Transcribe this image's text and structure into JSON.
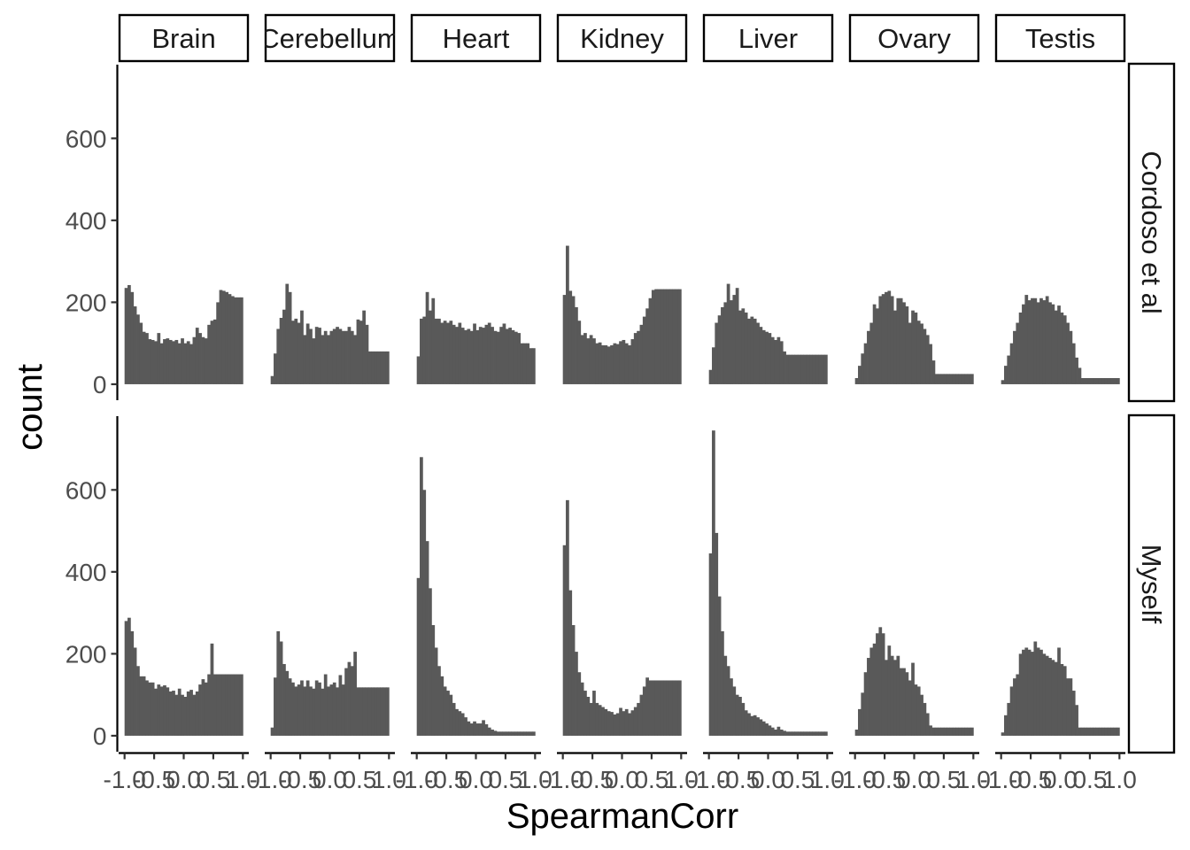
{
  "chart_data": {
    "type": "bar",
    "subtype": "faceted histogram",
    "xlabel": "SpearmanCorr",
    "ylabel": "count",
    "xlim": [
      -1.0,
      1.0
    ],
    "ylim": [
      0,
      780
    ],
    "x_ticks": [
      "-1.0",
      "-0.5",
      "0.0",
      "0.5",
      "1.0"
    ],
    "y_ticks": [
      "0",
      "200",
      "400",
      "600"
    ],
    "grid": false,
    "bin_edges": [
      -1.0,
      -0.95,
      -0.9,
      -0.85,
      -0.8,
      -0.75,
      -0.7,
      -0.65,
      -0.6,
      -0.55,
      -0.5,
      -0.45,
      -0.4,
      -0.35,
      -0.3,
      -0.25,
      -0.2,
      -0.15,
      -0.1,
      -0.05,
      0.0,
      0.05,
      0.1,
      0.15,
      0.2,
      0.25,
      0.3,
      0.35,
      0.4,
      0.45,
      0.5,
      0.55,
      0.6,
      0.65,
      0.7,
      0.75,
      0.8,
      0.85,
      0.9,
      0.95,
      1.0
    ],
    "columns": [
      "Brain",
      "Cerebellum",
      "Heart",
      "Kidney",
      "Liver",
      "Ovary",
      "Testis"
    ],
    "rows": [
      "Cordoso et al",
      "Myself"
    ],
    "panels": [
      {
        "row": "Cordoso et al",
        "column": "Brain",
        "counts": [
          235,
          242,
          225,
          190,
          170,
          150,
          128,
          125,
          110,
          108,
          105,
          125,
          100,
          110,
          112,
          108,
          105,
          108,
          100,
          112,
          100,
          105,
          98,
          115,
          138,
          125,
          115,
          112,
          145,
          155,
          158,
          200,
          230,
          228,
          225,
          220,
          215,
          212,
          212,
          212
        ]
      },
      {
        "row": "Cordoso et al",
        "column": "Cerebellum",
        "counts": [
          20,
          75,
          135,
          162,
          182,
          245,
          225,
          155,
          160,
          150,
          180,
          120,
          148,
          135,
          112,
          140,
          138,
          120,
          130,
          120,
          130,
          135,
          140,
          135,
          130,
          130,
          140,
          130,
          120,
          158,
          155,
          180,
          145,
          80,
          80,
          80,
          80,
          80,
          80,
          80
        ]
      },
      {
        "row": "Cordoso et al",
        "column": "Heart",
        "counts": [
          68,
          160,
          165,
          225,
          180,
          210,
          160,
          160,
          150,
          155,
          150,
          155,
          145,
          140,
          150,
          138,
          132,
          135,
          130,
          148,
          132,
          140,
          138,
          145,
          150,
          140,
          130,
          128,
          140,
          148,
          135,
          138,
          132,
          128,
          125,
          100,
          100,
          100,
          88,
          88
        ]
      },
      {
        "row": "Cordoso et al",
        "column": "Kidney",
        "counts": [
          218,
          338,
          228,
          215,
          188,
          155,
          120,
          125,
          112,
          120,
          112,
          100,
          102,
          95,
          95,
          92,
          95,
          100,
          98,
          105,
          108,
          100,
          95,
          110,
          125,
          130,
          145,
          165,
          185,
          210,
          230,
          232,
          232,
          232,
          232,
          232,
          232,
          232,
          232,
          232
        ]
      },
      {
        "row": "Cordoso et al",
        "column": "Liver",
        "counts": [
          35,
          90,
          150,
          168,
          188,
          200,
          245,
          205,
          218,
          235,
          180,
          185,
          175,
          160,
          165,
          160,
          150,
          140,
          132,
          128,
          125,
          115,
          108,
          115,
          105,
          80,
          72,
          72,
          72,
          72,
          72,
          72,
          72,
          72,
          72,
          72,
          72,
          72,
          72,
          72
        ]
      },
      {
        "row": "Cordoso et al",
        "column": "Ovary",
        "counts": [
          15,
          45,
          75,
          100,
          130,
          150,
          195,
          185,
          215,
          220,
          225,
          228,
          215,
          180,
          210,
          210,
          200,
          190,
          150,
          180,
          175,
          155,
          148,
          135,
          120,
          98,
          58,
          25,
          25,
          25,
          25,
          25,
          25,
          25,
          25,
          25,
          25,
          25,
          25,
          25
        ]
      },
      {
        "row": "Cordoso et al",
        "column": "Testis",
        "counts": [
          10,
          45,
          70,
          100,
          130,
          150,
          175,
          195,
          218,
          205,
          210,
          210,
          200,
          210,
          205,
          215,
          200,
          195,
          180,
          192,
          175,
          168,
          150,
          130,
          100,
          65,
          40,
          15,
          15,
          15,
          15,
          15,
          15,
          15,
          15,
          15,
          15,
          15,
          15,
          15
        ]
      },
      {
        "row": "Myself",
        "column": "Brain",
        "counts": [
          280,
          288,
          255,
          215,
          170,
          145,
          145,
          135,
          130,
          130,
          115,
          125,
          120,
          123,
          118,
          108,
          110,
          100,
          115,
          100,
          95,
          108,
          112,
          100,
          108,
          125,
          138,
          130,
          150,
          225,
          150,
          150,
          150,
          150,
          150,
          150,
          150,
          150,
          150,
          150
        ]
      },
      {
        "row": "Myself",
        "column": "Cerebellum",
        "counts": [
          20,
          142,
          255,
          230,
          175,
          158,
          140,
          130,
          120,
          125,
          135,
          120,
          135,
          120,
          115,
          135,
          130,
          115,
          150,
          120,
          125,
          130,
          118,
          148,
          125,
          165,
          180,
          170,
          205,
          118,
          118,
          118,
          118,
          118,
          118,
          118,
          118,
          118,
          118,
          118
        ]
      },
      {
        "row": "Myself",
        "column": "Heart",
        "counts": [
          385,
          680,
          600,
          475,
          360,
          270,
          215,
          170,
          145,
          120,
          110,
          100,
          80,
          65,
          60,
          55,
          45,
          35,
          30,
          35,
          30,
          30,
          38,
          28,
          20,
          15,
          12,
          10,
          10,
          10,
          10,
          10,
          10,
          10,
          10,
          10,
          10,
          10,
          10,
          10
        ]
      },
      {
        "row": "Myself",
        "column": "Kidney",
        "counts": [
          465,
          575,
          355,
          270,
          205,
          155,
          130,
          110,
          95,
          80,
          110,
          80,
          75,
          70,
          65,
          60,
          58,
          52,
          55,
          68,
          60,
          65,
          55,
          62,
          70,
          80,
          100,
          120,
          142,
          135,
          135,
          135,
          135,
          135,
          135,
          135,
          135,
          135,
          135,
          135
        ]
      },
      {
        "row": "Myself",
        "column": "Liver",
        "counts": [
          445,
          745,
          495,
          340,
          255,
          195,
          170,
          140,
          120,
          100,
          95,
          80,
          62,
          55,
          48,
          50,
          45,
          40,
          35,
          30,
          25,
          20,
          15,
          22,
          15,
          12,
          10,
          10,
          10,
          10,
          10,
          10,
          10,
          10,
          10,
          10,
          10,
          10,
          10,
          10
        ]
      },
      {
        "row": "Myself",
        "column": "Ovary",
        "counts": [
          15,
          65,
          105,
          155,
          190,
          215,
          225,
          250,
          265,
          250,
          185,
          220,
          195,
          185,
          195,
          165,
          165,
          155,
          135,
          178,
          125,
          120,
          100,
          80,
          55,
          25,
          20,
          20,
          20,
          20,
          20,
          20,
          20,
          20,
          20,
          20,
          20,
          20,
          20,
          20
        ]
      },
      {
        "row": "Myself",
        "column": "Testis",
        "counts": [
          8,
          50,
          80,
          120,
          140,
          150,
          200,
          210,
          215,
          210,
          205,
          230,
          215,
          210,
          200,
          195,
          190,
          185,
          180,
          215,
          175,
          170,
          140,
          140,
          110,
          75,
          20,
          20,
          20,
          20,
          20,
          20,
          20,
          20,
          20,
          20,
          20,
          20,
          20,
          20
        ]
      }
    ]
  }
}
